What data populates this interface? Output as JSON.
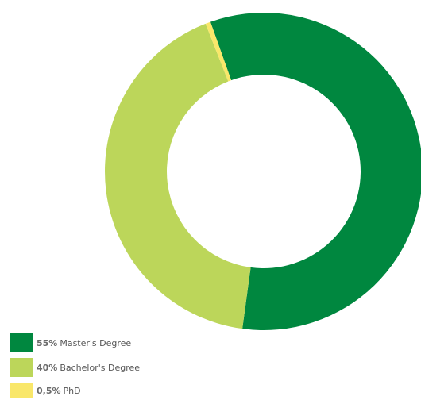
{
  "chart_data": {
    "type": "pie",
    "style": "donut",
    "title": "",
    "slices": [
      {
        "label_pct": "55%",
        "label": "Master's Degree",
        "value": 55,
        "color": "#00873f"
      },
      {
        "label_pct": "40%",
        "label": "Bachelor's Degree",
        "value": 40,
        "color": "#bcd65a"
      },
      {
        "label_pct": "0,5%",
        "label": "PhD",
        "value": 0.5,
        "color": "#f9e76a"
      }
    ],
    "legend_position": "bottom-left"
  }
}
